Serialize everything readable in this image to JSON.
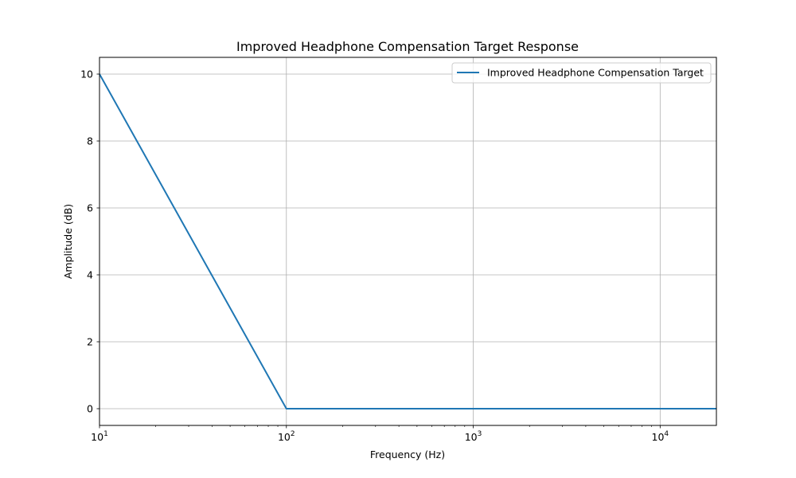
{
  "chart_data": {
    "type": "line",
    "title": "Improved Headphone Compensation Target Response",
    "xlabel": "Frequency (Hz)",
    "ylabel": "Amplitude (dB)",
    "xscale": "log",
    "xlim": [
      10,
      20000
    ],
    "ylim": [
      -0.5,
      10.5
    ],
    "grid": true,
    "legend_position": "upper right",
    "x_ticks": [
      {
        "value": 10,
        "base": "10",
        "exp": "1"
      },
      {
        "value": 100,
        "base": "10",
        "exp": "2"
      },
      {
        "value": 1000,
        "base": "10",
        "exp": "3"
      },
      {
        "value": 10000,
        "base": "10",
        "exp": "4"
      }
    ],
    "y_ticks": [
      {
        "value": 0,
        "label": "0"
      },
      {
        "value": 2,
        "label": "2"
      },
      {
        "value": 4,
        "label": "4"
      },
      {
        "value": 6,
        "label": "6"
      },
      {
        "value": 8,
        "label": "8"
      },
      {
        "value": 10,
        "label": "10"
      }
    ],
    "series": [
      {
        "name": "Improved Headphone Compensation Target",
        "color": "#1f77b4",
        "x": [
          10,
          100,
          1000,
          10000,
          20000
        ],
        "y": [
          10,
          0,
          0,
          0,
          0
        ]
      }
    ]
  }
}
